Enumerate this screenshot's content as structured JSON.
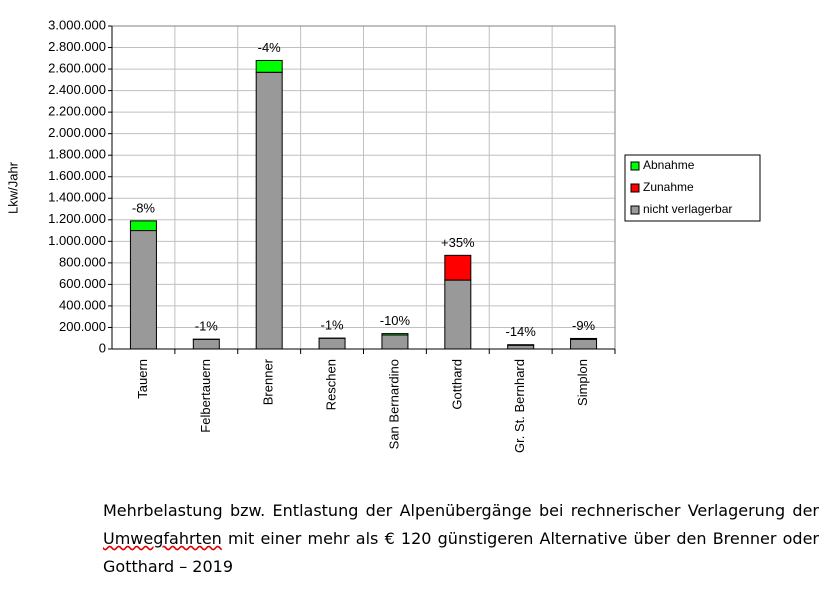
{
  "chart_data": {
    "type": "stacked_bar",
    "y_label": "Lkw/Jahr",
    "categories": [
      "Tauern",
      "Felbertauern",
      "Brenner",
      "Reschen",
      "San Bernardino",
      "Gotthard",
      "Gr. St. Bernhard",
      "Simplon"
    ],
    "series": [
      {
        "name": "Abnahme",
        "color": "#00ff00",
        "values": [
          90000,
          1000,
          110000,
          1000,
          13000,
          0,
          5000,
          8000
        ]
      },
      {
        "name": "Zunahme",
        "color": "#ff0000",
        "values": [
          0,
          0,
          0,
          0,
          0,
          230000,
          0,
          0
        ]
      },
      {
        "name": "nicht verlagerbar",
        "color": "#999999",
        "values": [
          1100000,
          90000,
          2570000,
          100000,
          130000,
          640000,
          35000,
          90000
        ]
      }
    ],
    "annotations": [
      "-8%",
      "-1%",
      "-4%",
      "-1%",
      "-10%",
      "+35%",
      "-14%",
      "-9%"
    ],
    "ylim": [
      0,
      3000000
    ],
    "yticks": [
      0,
      {
        "value": 200000,
        "label": "200.000"
      },
      {
        "value": 400000,
        "label": "400.000"
      },
      {
        "value": 600000,
        "label": "600.000"
      },
      {
        "value": 800000,
        "label": "800.000"
      },
      {
        "value": 1000000,
        "label": "1.000.000"
      },
      {
        "value": 1200000,
        "label": "1.200.000"
      },
      {
        "value": 1400000,
        "label": "1.400.000"
      },
      {
        "value": 1600000,
        "label": "1.600.000"
      },
      {
        "value": 1800000,
        "label": "1.800.000"
      },
      {
        "value": 2000000,
        "label": "2.000.000"
      },
      {
        "value": 2200000,
        "label": "2.200.000"
      },
      {
        "value": 2400000,
        "label": "2.400.000"
      },
      {
        "value": 2600000,
        "label": "2.600.000"
      },
      {
        "value": 2800000,
        "label": "2.800.000"
      },
      {
        "value": 3000000,
        "label": "3.000.000"
      }
    ],
    "grid": true,
    "legend": "right"
  },
  "caption": {
    "before": "Mehrbelastung bzw. Entlastung der Alpenübergänge bei rechnerischer Verlagerung der ",
    "underlined": "Umwegfahrten",
    "after": " mit einer mehr als € 120 günstigeren Alternative über den Brenner oder Gotthard – 2019"
  }
}
